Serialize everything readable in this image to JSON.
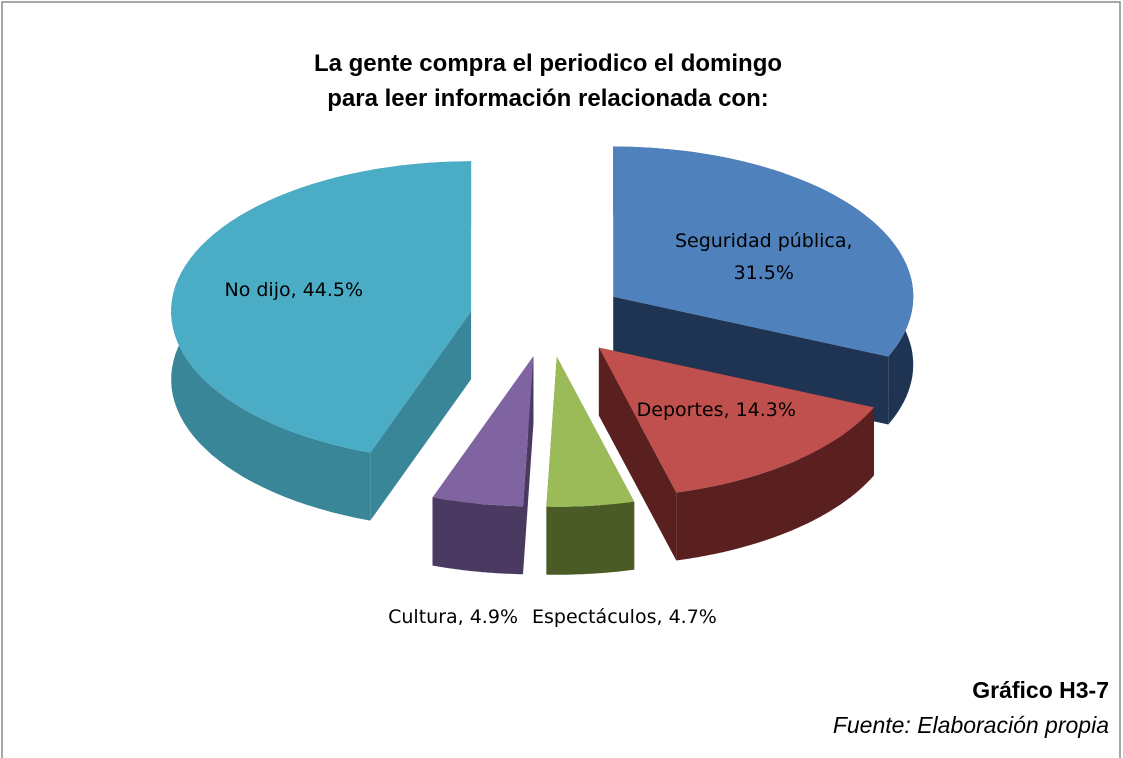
{
  "chart_data": {
    "type": "pie3d",
    "title": [
      "La gente compra el periodico el domingo",
      "para leer información relacionada con:"
    ],
    "values": [
      31.5,
      14.3,
      4.7,
      4.9,
      44.5
    ],
    "value_labels": [
      "Seguridad pública, 31.5%",
      "Deportes, 14.3%",
      "Espectáculos, 4.7%",
      "Cultura, 4.9%",
      "No dijo, 44.5%"
    ],
    "colors": [
      "#4f81bd",
      "#c0504d",
      "#9bbb59",
      "#8064a2",
      "#4bacc6"
    ],
    "side_colors": [
      "#1f3452",
      "#5a1f1f",
      "#4b5b26",
      "#4a3a62",
      "#3a8699"
    ],
    "caption": "Gráfico H3-7",
    "source": "Fuente: Elaboración propia"
  }
}
